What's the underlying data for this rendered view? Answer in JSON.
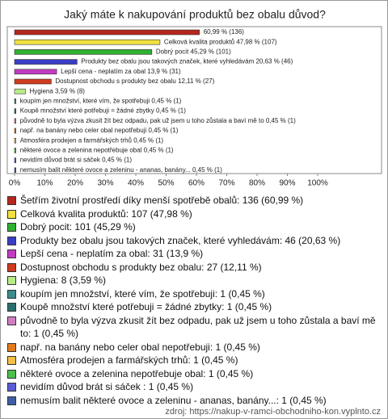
{
  "chart_data": {
    "type": "bar",
    "orientation": "horizontal",
    "title": "Jaký máte k nakupování produktů bez obalu důvod?",
    "categories": [
      "Šetřím životní prostředí díky menší spotřebě obalů: 136 (60,99 %)",
      "Celková kvalita produktů: 107 (47,98 %)",
      "Dobrý pocit: 101 (45,29 %)",
      "Produkty bez obalu jsou takových značek, které vyhledávám: 46 (20,63 %)",
      "Lepší cena - neplatím za obal: 31 (13,9 %)",
      "Dostupnost obchodu s produkty bez obalu: 27 (12,11 %)",
      "Hygiena: 8 (3,59 %)",
      "koupím jen množství, které vím, že spotřebuji: 1 (0,45 %)",
      "Koupě množství které potřebuji = žádné zbytky: 1 (0,45 %)",
      "původně to byla výzva zkusit žít bez odpadu, pak už jsem u toho zůstala a baví mě to: 1 (0,45 %)",
      "např. na banány nebo celer obal nepotřebuji: 1 (0,45 %)",
      "Atmosféra prodejen a farmářských trhů: 1 (0,45 %)",
      "některé ovoce a zelenina nepotřebuje obal: 1 (0,45 %)",
      "nevidím důvod brát si sáček : 1 (0,45 %)",
      "nemusím balit některé ovoce a zeleninu - ananas, banány...: 1 (0,45 %)"
    ],
    "values": [
      60.99,
      47.98,
      45.29,
      20.63,
      13.9,
      12.11,
      3.59,
      0.45,
      0.45,
      0.45,
      0.45,
      0.45,
      0.45,
      0.45,
      0.45
    ],
    "value_labels": [
      "60,99 % (136)",
      "Celková kvalita produktů 47,98 % (107)",
      "Dobrý pocit 45,29 % (101)",
      "Produkty bez obalu jsou takových značek, které vyhledávám 20,63 % (46)",
      "Lepší cena - neplatím za obal 13,9 % (31)",
      "Dostupnost obchodu s produkty bez obalu 12,11 % (27)",
      "Hygiena 3,59 % (8)",
      "koupím jen množství, které vím, že spotřebuji 0,45 % (1)",
      "Koupě množství které potřebuji = žádné zbytky 0,45 % (1)",
      "původně to byla výzva zkusit žít bez odpadu, pak už jsem u toho zůstala a baví mě to 0,45 % (1)",
      "např. na banány nebo celer obal nepotřebuji 0,45 % (1)",
      "Atmosféra prodejen a farmářských trhů 0,45 % (1)",
      "některé ovoce a zelenina nepotřebuje obal 0,45 % (1)",
      "nevidím důvod brát si sáček  0,45 % (1)",
      "nemusím balit některé ovoce a zeleninu - ananas, banány... 0,45 % (1)"
    ],
    "colors": [
      "#b5261e",
      "#f2e040",
      "#2fb02f",
      "#3a3ec4",
      "#c23cc2",
      "#cf3b1e",
      "#b8ec88",
      "#3c8c8c",
      "#2c6e6e",
      "#d07ec0",
      "#e07a1a",
      "#f0c048",
      "#4cbf4c",
      "#5a5ad6",
      "#3f5fa3"
    ],
    "xlim": [
      0,
      100
    ],
    "xticks": [
      {
        "value": 0,
        "label": "0%"
      },
      {
        "value": 10,
        "label": "10%"
      },
      {
        "value": 20,
        "label": "20%"
      },
      {
        "value": 30,
        "label": "30%"
      },
      {
        "value": 40,
        "label": "40%"
      },
      {
        "value": 50,
        "label": "50%"
      },
      {
        "value": 60,
        "label": "60%"
      },
      {
        "value": 70,
        "label": "70%"
      },
      {
        "value": 80,
        "label": "80%"
      },
      {
        "value": 90,
        "label": "90%"
      },
      {
        "value": 100,
        "label": "100%"
      }
    ],
    "source": "zdroj: https://nakup-v-ramci-obchodniho-kon.vyplnto.cz"
  }
}
